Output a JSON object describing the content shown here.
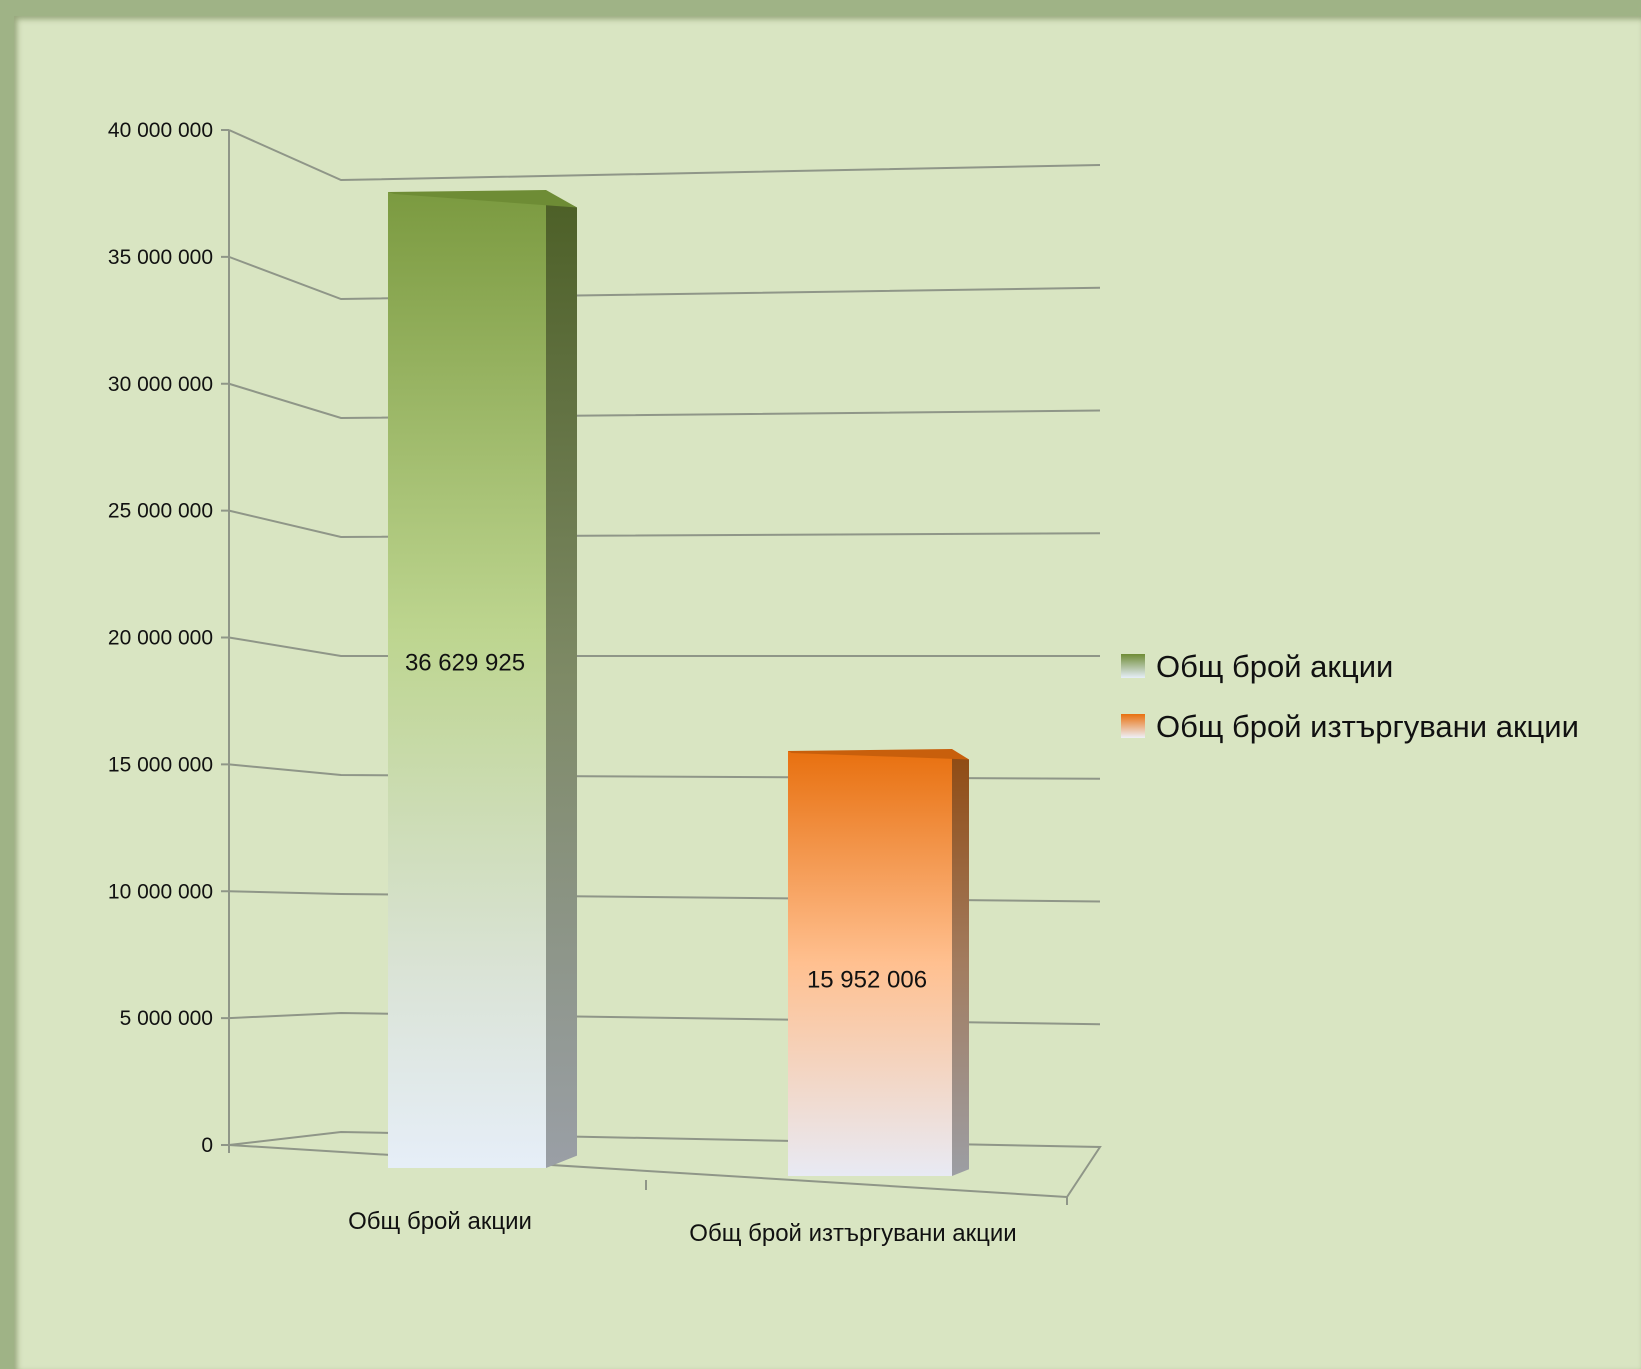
{
  "chart_data": {
    "type": "bar",
    "style": "3d-column",
    "categories": [
      "Общ брой акции",
      "Общ брой изтъргувани акции"
    ],
    "series": [
      {
        "values": [
          36629925,
          15952006
        ],
        "data_labels": [
          "36 629 925",
          "15 952 006"
        ],
        "colors": [
          "#7d9b44",
          "#e8700f"
        ]
      }
    ],
    "ylim": [
      0,
      40000000
    ],
    "y_ticks": [
      0,
      5000000,
      10000000,
      15000000,
      20000000,
      25000000,
      30000000,
      35000000,
      40000000
    ],
    "y_tick_labels": [
      "0",
      "5 000 000",
      "10 000 000",
      "15 000 000",
      "20 000 000",
      "25 000 000",
      "30 000 000",
      "35 000 000",
      "40 000 000"
    ],
    "grid": true,
    "legend": {
      "position": "right",
      "entries": [
        {
          "label": "Общ брой акции",
          "color": "#7d9b44"
        },
        {
          "label": "Общ брой изтъргувани акции",
          "color": "#e8700f"
        }
      ]
    }
  }
}
